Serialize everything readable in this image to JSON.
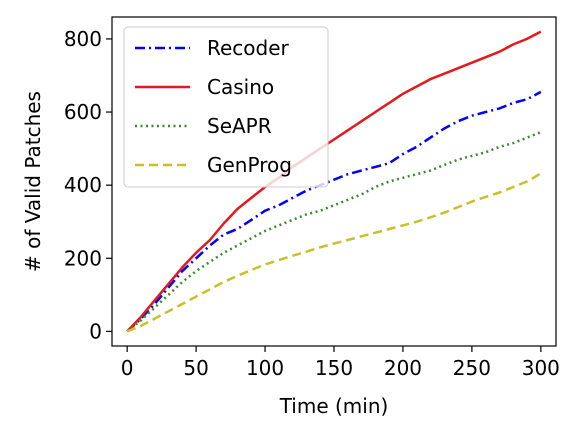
{
  "chart_data": {
    "type": "line",
    "xlabel": "Time (min)",
    "ylabel": "# of Valid Patches",
    "xlim": [
      -11,
      311
    ],
    "ylim": [
      -40,
      860
    ],
    "xticks": [
      0,
      50,
      100,
      150,
      200,
      250,
      300
    ],
    "yticks": [
      0,
      200,
      400,
      600,
      800
    ],
    "grid": false,
    "legend_position": "upper-left",
    "series": [
      {
        "name": "Recoder",
        "color": "#0000ff",
        "style": "dashdot",
        "x": [
          0,
          10,
          20,
          30,
          40,
          50,
          60,
          70,
          80,
          90,
          100,
          110,
          120,
          130,
          140,
          150,
          160,
          170,
          180,
          190,
          200,
          210,
          220,
          230,
          240,
          250,
          260,
          270,
          280,
          290,
          300
        ],
        "y": [
          0,
          35,
          75,
          120,
          165,
          200,
          235,
          265,
          280,
          305,
          330,
          345,
          365,
          385,
          400,
          415,
          430,
          440,
          450,
          460,
          485,
          505,
          530,
          555,
          575,
          590,
          600,
          610,
          625,
          635,
          655
        ]
      },
      {
        "name": "Casino",
        "color": "#e31a1c",
        "style": "solid",
        "x": [
          0,
          10,
          20,
          30,
          40,
          50,
          60,
          70,
          80,
          90,
          100,
          110,
          120,
          130,
          140,
          150,
          160,
          170,
          180,
          190,
          200,
          210,
          220,
          230,
          240,
          250,
          260,
          270,
          280,
          290,
          300
        ],
        "y": [
          0,
          40,
          85,
          130,
          175,
          215,
          250,
          295,
          335,
          365,
          395,
          420,
          450,
          475,
          500,
          525,
          550,
          575,
          600,
          625,
          650,
          670,
          690,
          705,
          720,
          735,
          750,
          765,
          785,
          800,
          820
        ]
      },
      {
        "name": "SeAPR",
        "color": "#3c8a2e",
        "style": "dotted",
        "x": [
          0,
          10,
          20,
          30,
          40,
          50,
          60,
          70,
          80,
          90,
          100,
          110,
          120,
          130,
          140,
          150,
          160,
          170,
          180,
          190,
          200,
          210,
          220,
          230,
          240,
          250,
          260,
          270,
          280,
          290,
          300
        ],
        "y": [
          0,
          30,
          65,
          100,
          135,
          165,
          190,
          215,
          235,
          255,
          275,
          290,
          305,
          320,
          330,
          345,
          360,
          375,
          395,
          410,
          420,
          430,
          440,
          455,
          470,
          480,
          490,
          505,
          515,
          530,
          545
        ]
      },
      {
        "name": "GenProg",
        "color": "#c8c028",
        "style": "dashed",
        "x": [
          0,
          10,
          20,
          30,
          40,
          50,
          60,
          70,
          80,
          90,
          100,
          110,
          120,
          130,
          140,
          150,
          160,
          170,
          180,
          190,
          200,
          210,
          220,
          230,
          240,
          250,
          260,
          270,
          280,
          290,
          300
        ],
        "y": [
          0,
          15,
          35,
          55,
          75,
          95,
          115,
          135,
          152,
          168,
          183,
          195,
          207,
          218,
          230,
          240,
          250,
          260,
          270,
          280,
          290,
          300,
          312,
          325,
          340,
          355,
          368,
          380,
          395,
          410,
          432
        ]
      }
    ]
  }
}
